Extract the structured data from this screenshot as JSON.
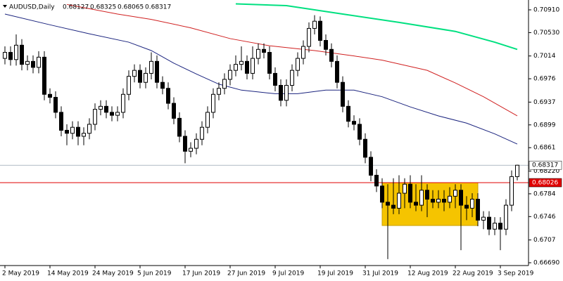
{
  "chart_data": {
    "type": "candlestick",
    "symbol": "AUDUSD,Daily",
    "categories": [
      "2 May 2019",
      null,
      null,
      null,
      null,
      null,
      null,
      null,
      "14 May 2019",
      null,
      null,
      null,
      null,
      null,
      null,
      null,
      "24 May 2019",
      null,
      null,
      null,
      null,
      null,
      null,
      null,
      "5 Jun 2019",
      null,
      null,
      null,
      null,
      null,
      null,
      null,
      "17 Jun 2019",
      null,
      null,
      null,
      null,
      null,
      null,
      null,
      "27 Jun 2019",
      null,
      null,
      null,
      null,
      null,
      null,
      null,
      "9 Jul 2019",
      null,
      null,
      null,
      null,
      null,
      null,
      null,
      "19 Jul 2019",
      null,
      null,
      null,
      null,
      null,
      null,
      null,
      "31 Jul 2019",
      null,
      null,
      null,
      null,
      null,
      null,
      null,
      "12 Aug 2019",
      null,
      null,
      null,
      null,
      null,
      null,
      null,
      "22 Aug 2019",
      null,
      null,
      null,
      null,
      null,
      null,
      null,
      "3 Sep 2019",
      null,
      null,
      null
    ],
    "open": [
      0.701,
      0.702,
      0.7008,
      0.7032,
      0.7,
      0.7005,
      0.6995,
      0.7012,
      0.695,
      0.6945,
      0.692,
      0.689,
      0.6885,
      0.6895,
      0.688,
      0.6885,
      0.69,
      0.6925,
      0.693,
      0.692,
      0.6915,
      0.692,
      0.695,
      0.698,
      0.699,
      0.697,
      0.6985,
      0.7005,
      0.697,
      0.696,
      0.6935,
      0.691,
      0.688,
      0.6855,
      0.686,
      0.6875,
      0.6895,
      0.692,
      0.695,
      0.696,
      0.6975,
      0.699,
      0.7,
      0.7005,
      0.6985,
      0.701,
      0.7025,
      0.702,
      0.6985,
      0.6965,
      0.694,
      0.6965,
      0.699,
      0.701,
      0.703,
      0.706,
      0.7072,
      0.704,
      0.7025,
      0.7005,
      0.697,
      0.693,
      0.6905,
      0.69,
      0.6875,
      0.6845,
      0.6815,
      0.6797,
      0.677,
      0.6765,
      0.676,
      0.6785,
      0.68,
      0.677,
      0.6765,
      0.679,
      0.6775,
      0.677,
      0.6775,
      0.677,
      0.678,
      0.679,
      0.6765,
      0.676,
      0.6775,
      0.674,
      0.6745,
      0.6725,
      0.6735,
      0.6725,
      0.6765,
      0.68127
    ],
    "high": [
      0.703,
      0.703,
      0.705,
      0.7042,
      0.7015,
      0.7015,
      0.7022,
      0.7022,
      0.696,
      0.6955,
      0.693,
      0.69,
      0.6905,
      0.6905,
      0.6895,
      0.691,
      0.6935,
      0.694,
      0.694,
      0.693,
      0.693,
      0.696,
      0.699,
      0.7,
      0.7,
      0.6995,
      0.702,
      0.7015,
      0.698,
      0.697,
      0.6945,
      0.692,
      0.689,
      0.687,
      0.6885,
      0.6905,
      0.693,
      0.696,
      0.697,
      0.6985,
      0.7,
      0.7015,
      0.703,
      0.7015,
      0.703,
      0.7035,
      0.7035,
      0.703,
      0.6995,
      0.6975,
      0.6975,
      0.7,
      0.702,
      0.704,
      0.707,
      0.7082,
      0.708,
      0.705,
      0.7035,
      0.7015,
      0.698,
      0.694,
      0.6915,
      0.691,
      0.6885,
      0.6855,
      0.6825,
      0.681,
      0.68,
      0.681,
      0.6815,
      0.681,
      0.6815,
      0.68,
      0.6815,
      0.68,
      0.679,
      0.679,
      0.679,
      0.6795,
      0.68,
      0.68,
      0.678,
      0.6785,
      0.6785,
      0.6755,
      0.6755,
      0.6745,
      0.6745,
      0.6775,
      0.6823,
      0.68325
    ],
    "low": [
      0.7,
      0.6998,
      0.6998,
      0.699,
      0.699,
      0.6985,
      0.6985,
      0.694,
      0.6935,
      0.691,
      0.688,
      0.6865,
      0.6875,
      0.6865,
      0.6865,
      0.6875,
      0.689,
      0.6915,
      0.691,
      0.6905,
      0.6905,
      0.691,
      0.694,
      0.697,
      0.696,
      0.696,
      0.6975,
      0.696,
      0.695,
      0.6925,
      0.69,
      0.687,
      0.6835,
      0.6845,
      0.685,
      0.6865,
      0.6885,
      0.691,
      0.694,
      0.695,
      0.6965,
      0.698,
      0.699,
      0.6975,
      0.6975,
      0.7,
      0.701,
      0.6975,
      0.6955,
      0.693,
      0.693,
      0.6955,
      0.698,
      0.7,
      0.702,
      0.705,
      0.703,
      0.7015,
      0.6995,
      0.696,
      0.692,
      0.6895,
      0.689,
      0.6865,
      0.6835,
      0.6805,
      0.6787,
      0.676,
      0.6675,
      0.675,
      0.675,
      0.676,
      0.676,
      0.6755,
      0.6755,
      0.6745,
      0.676,
      0.676,
      0.6755,
      0.676,
      0.676,
      0.669,
      0.674,
      0.6745,
      0.673,
      0.6725,
      0.6715,
      0.6715,
      0.669,
      0.6715,
      0.6755,
      0.68065
    ],
    "close": [
      0.702,
      0.7008,
      0.7032,
      0.7,
      0.7005,
      0.6995,
      0.7012,
      0.695,
      0.6945,
      0.692,
      0.689,
      0.6885,
      0.6895,
      0.688,
      0.6885,
      0.69,
      0.6925,
      0.693,
      0.692,
      0.6915,
      0.692,
      0.695,
      0.698,
      0.699,
      0.697,
      0.6985,
      0.7005,
      0.697,
      0.696,
      0.6935,
      0.691,
      0.688,
      0.6855,
      0.686,
      0.6875,
      0.6895,
      0.692,
      0.695,
      0.696,
      0.6975,
      0.699,
      0.7,
      0.7005,
      0.6985,
      0.701,
      0.7025,
      0.702,
      0.6985,
      0.6965,
      0.694,
      0.6965,
      0.699,
      0.701,
      0.703,
      0.706,
      0.7072,
      0.704,
      0.7025,
      0.7005,
      0.697,
      0.693,
      0.6905,
      0.69,
      0.6875,
      0.6845,
      0.6815,
      0.6797,
      0.677,
      0.6765,
      0.676,
      0.6785,
      0.68,
      0.677,
      0.6765,
      0.679,
      0.6775,
      0.677,
      0.6775,
      0.677,
      0.678,
      0.679,
      0.6765,
      0.676,
      0.6775,
      0.674,
      0.6745,
      0.6725,
      0.6735,
      0.6725,
      0.6765,
      0.68127,
      0.68317
    ],
    "moving_averages": [
      {
        "color": "#00e080",
        "x": [
          41,
          50,
          60,
          70,
          80,
          87,
          91
        ],
        "values": [
          0.7101,
          0.7098,
          0.7084,
          0.707,
          0.7055,
          0.7037,
          0.7025
        ]
      },
      {
        "color": "#d02020",
        "x": [
          11,
          20,
          26,
          33,
          40,
          47,
          55,
          62,
          67,
          75,
          80,
          85,
          91
        ],
        "values": [
          0.71,
          0.7084,
          0.7075,
          0.7061,
          0.7043,
          0.7031,
          0.7023,
          0.7014,
          0.7007,
          0.699,
          0.6969,
          0.6946,
          0.6914
        ]
      },
      {
        "color": "#1a237e",
        "x": [
          0,
          8,
          15,
          22,
          26,
          30,
          34,
          38,
          42,
          48,
          52,
          57,
          62,
          67,
          72,
          77,
          82,
          87,
          91
        ],
        "values": [
          0.7084,
          0.7066,
          0.7051,
          0.7037,
          0.7023,
          0.7002,
          0.6984,
          0.6967,
          0.6957,
          0.6951,
          0.6951,
          0.6957,
          0.6957,
          0.6946,
          0.6929,
          0.6914,
          0.6902,
          0.6884,
          0.6867
        ]
      }
    ],
    "level": {
      "value": 0.68026,
      "color": "#e00000"
    },
    "rectangle": {
      "x": [
        67,
        84
      ],
      "y": [
        0.67311,
        0.68026
      ],
      "color": "#f5c400"
    },
    "ylim": [
      0.66643,
      0.71074
    ],
    "yticks": [
      {
        "value": 0.7091,
        "label": "0.70910"
      },
      {
        "value": 0.7053,
        "label": "0.70530"
      },
      0.7014,
      0.6976,
      0.6937,
      0.6899,
      0.6861,
      {
        "value": 0.6822,
        "label": "0.68220"
      },
      0.6784,
      0.6746,
      0.6707,
      {
        "value": 0.6669,
        "label": "0.66690"
      }
    ]
  }
}
